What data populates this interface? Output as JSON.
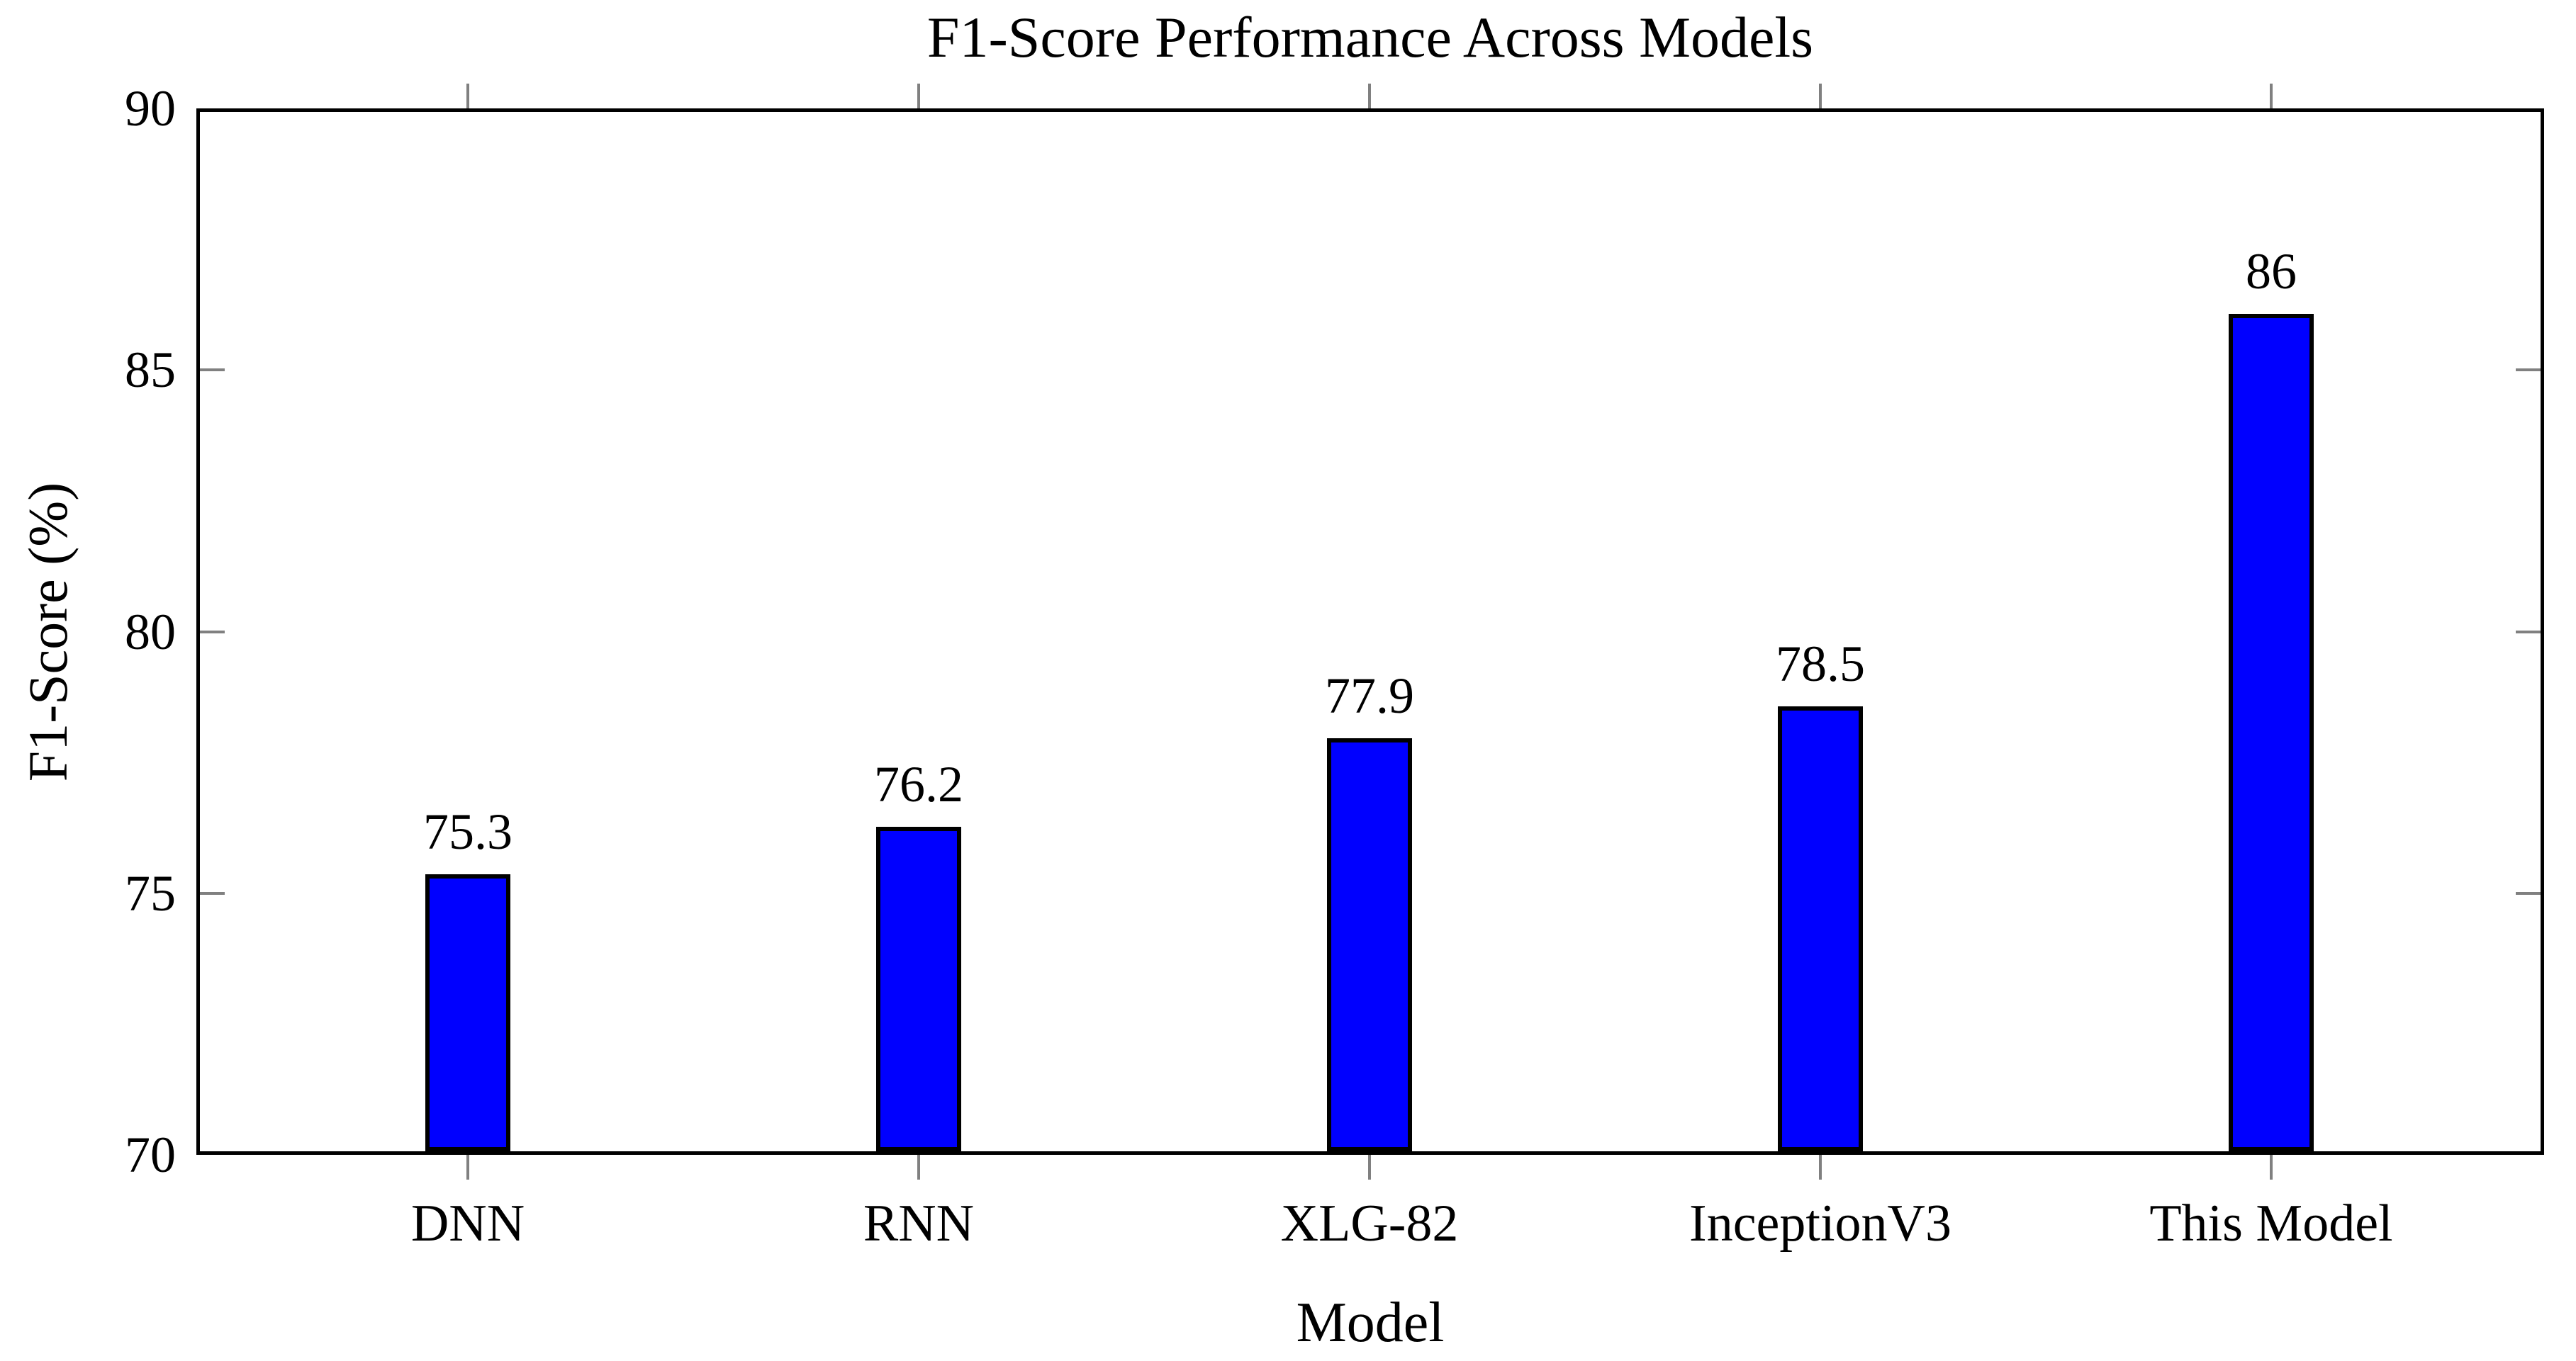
{
  "chart_data": {
    "type": "bar",
    "title": "F1-Score Performance Across Models",
    "xlabel": "Model",
    "ylabel": "F1-Score (%)",
    "categories": [
      "DNN",
      "RNN",
      "XLG-82",
      "InceptionV3",
      "This Model"
    ],
    "values": [
      75.3,
      76.2,
      77.9,
      78.5,
      86
    ],
    "value_labels": [
      "75.3",
      "76.2",
      "77.9",
      "78.5",
      "86"
    ],
    "ylim": [
      70,
      90
    ],
    "yticks": [
      70,
      75,
      80,
      85,
      90
    ],
    "inner_ytick_values": [
      75,
      80,
      85
    ],
    "grid": false,
    "legend_position": "none",
    "colors": {
      "bar_fill": "#0000ff",
      "bar_border": "#000000",
      "axis_frame": "#000000",
      "tick_marks": "#808080",
      "text": "#000000",
      "background": "#ffffff"
    }
  }
}
